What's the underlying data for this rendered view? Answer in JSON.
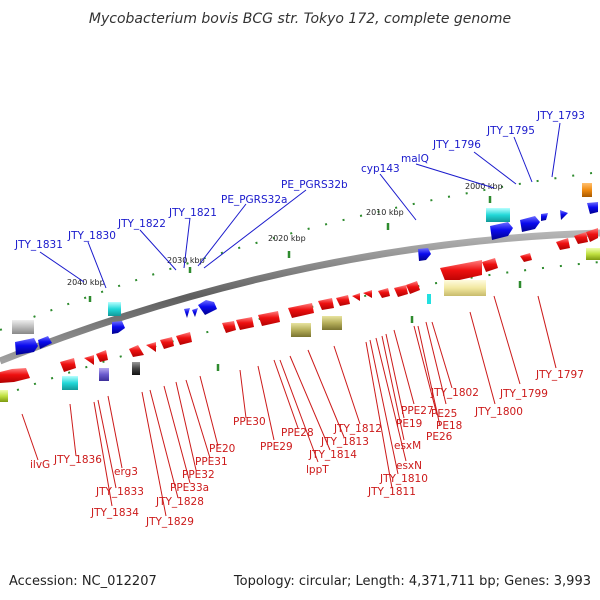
{
  "title": "Mycobacterium bovis BCG str. Tokyo 172, complete genome",
  "footer": {
    "accession": "Accession: NC_012207",
    "topology": "Topology: circular; Length: 4,371,711 bp; Genes: 3,993"
  },
  "colors": {
    "forward_label": "#1a1acc",
    "reverse_label": "#cc1a1a",
    "forward_gene": "#0a0aee",
    "reverse_gene": "#ee0a0a",
    "backbone": "#7a7a7a",
    "tick": "#2e8b2e"
  },
  "scale_labels": [
    "2000 kbp",
    "2010 kbp",
    "2020 kbp",
    "2030 kbp",
    "2040 kbp"
  ],
  "forward_genes": [
    "JTY_1793",
    "JTY_1795",
    "JTY_1796",
    "malQ",
    "cyp143",
    "PE_PGRS32b",
    "PE_PGRS32a",
    "JTY_1821",
    "JTY_1822",
    "JTY_1830",
    "JTY_1831"
  ],
  "reverse_genes": [
    "JTY_1797",
    "JTY_1799",
    "JTY_1800",
    "JTY_1802",
    "PE25",
    "PE26",
    "PE18",
    "PPE27",
    "PE19",
    "esxM",
    "esxN",
    "JTY_1810",
    "JTY_1811",
    "JTY_1812",
    "JTY_1813",
    "JTY_1814",
    "lppT",
    "PPE28",
    "PPE29",
    "PPE30",
    "PE20",
    "PPE31",
    "PPE32",
    "PPE33a",
    "JTY_1828",
    "JTY_1829",
    "erg3",
    "JTY_1833",
    "JTY_1834",
    "JTY_1836",
    "ilvG"
  ]
}
